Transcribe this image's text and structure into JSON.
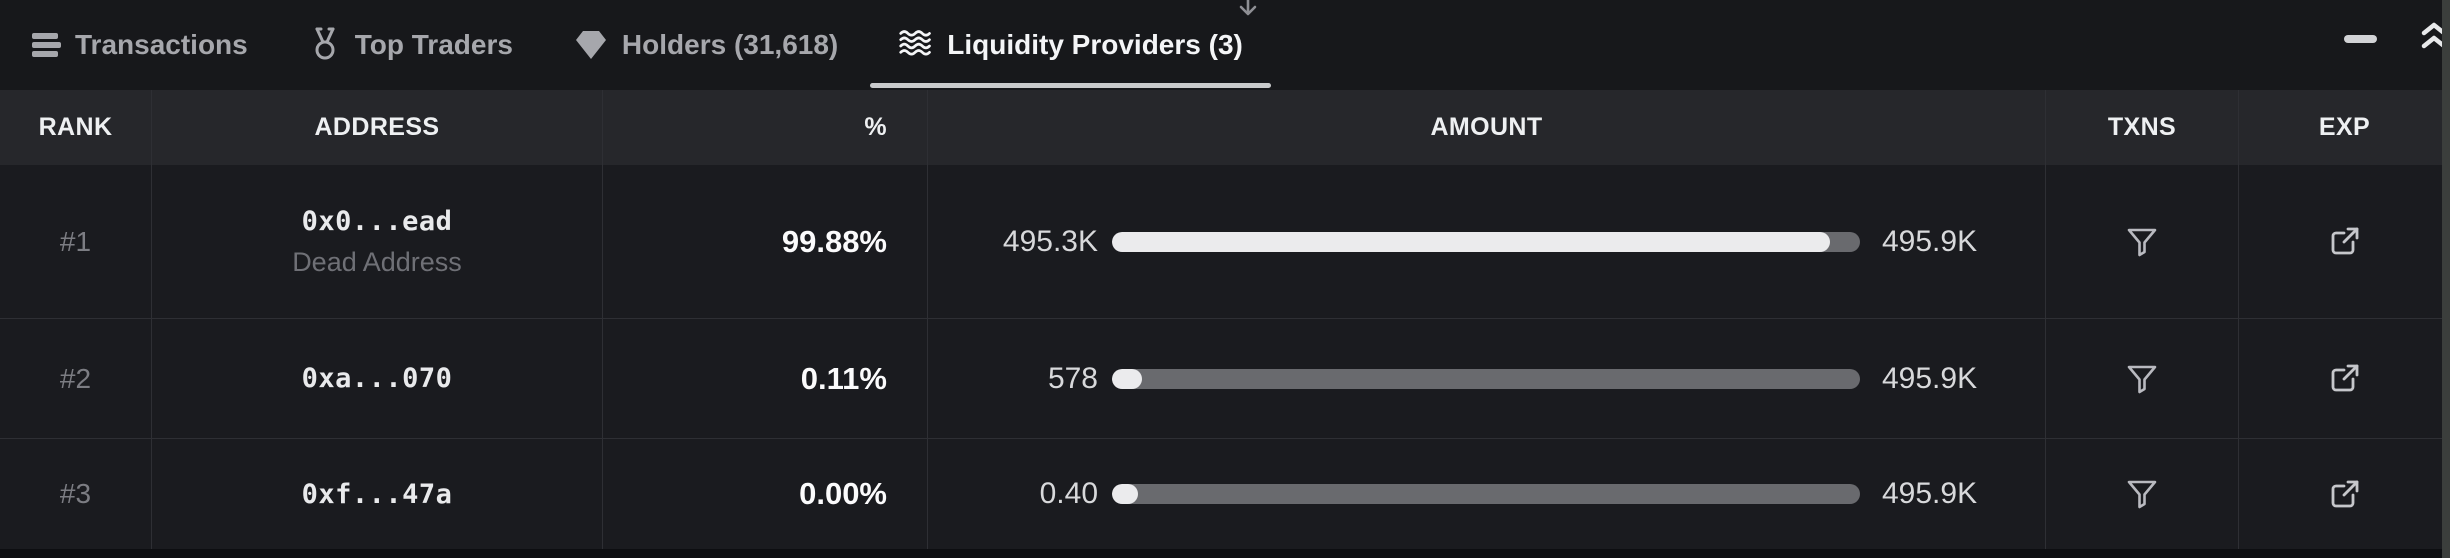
{
  "tab_bar": {
    "tabs": [
      {
        "label": "Transactions",
        "icon": "list-icon",
        "active": false
      },
      {
        "label": "Top Traders",
        "icon": "medal-icon",
        "active": false
      },
      {
        "label": "Holders (31,618)",
        "icon": "gem-icon",
        "active": false
      },
      {
        "label": "Liquidity Providers (3)",
        "icon": "waves-icon",
        "active": true
      }
    ],
    "scroll_hint": "down-arrow",
    "controls": {
      "minimize": "minimize",
      "expand": "double-chevron-up"
    }
  },
  "table": {
    "columns": [
      "RANK",
      "ADDRESS",
      "%",
      "AMOUNT",
      "TXNS",
      "EXP"
    ],
    "rows": [
      {
        "rank": "#1",
        "address": "0x0...ead",
        "address_note": "Dead Address",
        "percent": "99.88%",
        "amount_left": "495.3K",
        "amount_right": "495.9K",
        "bar_fill_pct": 96
      },
      {
        "rank": "#2",
        "address": "0xa...070",
        "address_note": "",
        "percent": "0.11%",
        "amount_left": "578",
        "amount_right": "495.9K",
        "bar_fill_pct": 4
      },
      {
        "rank": "#3",
        "address": "0xf...47a",
        "address_note": "",
        "percent": "0.00%",
        "amount_left": "0.40",
        "amount_right": "495.9K",
        "bar_fill_pct": 3.5
      }
    ]
  },
  "colors": {
    "tab_bar_bg": "#17181b",
    "header_bg": "#26272b",
    "row_bg": "#1a1b1f",
    "border": "#2e2f34",
    "active_tab_text": "#f4f5f7",
    "inactive_tab_text": "#a6a7ac",
    "bar_fill": "#ebebed",
    "bar_track": "#696a6e",
    "accent_underline": "#c9cacc"
  }
}
